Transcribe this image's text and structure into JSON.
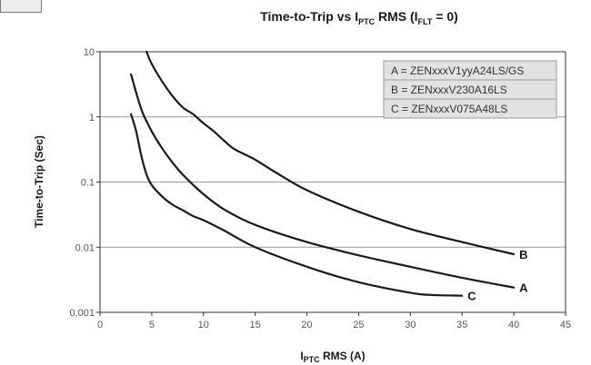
{
  "chart_data": {
    "type": "line",
    "title": "Time-to-Trip vs I_PTC RMS (I_FLT = 0)",
    "title_parts": {
      "lead": "Time-to-Trip vs I",
      "sub1": "PTC",
      "mid": " RMS (I",
      "sub2": "FLT",
      "tail": " = 0)"
    },
    "xlabel": "I_PTC RMS (A)",
    "xlabel_parts": {
      "main": "I",
      "sub": "PTC",
      "rest": " RMS (A)"
    },
    "ylabel": "Time-to-Trip (Sec)",
    "xlim": [
      0,
      45
    ],
    "ylim": [
      0.001,
      10
    ],
    "yscale": "log",
    "grid": "horizontal",
    "legend_position": "top-right",
    "x_ticks": [
      "0",
      "5",
      "10",
      "15",
      "20",
      "25",
      "30",
      "35",
      "40",
      "45"
    ],
    "y_ticks": [
      "0.001",
      "0.01",
      "0.1",
      "1",
      "10"
    ],
    "y_tick_values": [
      0.001,
      0.01,
      0.1,
      1,
      10
    ],
    "legend": [
      "A = ZENxxxV1yyA24LS/GS",
      "B = ZENxxxV230A16LS",
      "C = ZENxxxV075A48LS"
    ],
    "series": [
      {
        "name": "A",
        "x": [
          3,
          4,
          5,
          6,
          7,
          8,
          10,
          12,
          15,
          20,
          25,
          30,
          35,
          40
        ],
        "y": [
          4.5,
          1.3,
          0.6,
          0.33,
          0.2,
          0.13,
          0.065,
          0.038,
          0.022,
          0.012,
          0.0075,
          0.005,
          0.0034,
          0.0024
        ]
      },
      {
        "name": "B",
        "x": [
          4.5,
          5,
          6,
          7,
          8,
          9,
          10,
          11,
          12,
          13,
          15,
          17,
          20,
          25,
          30,
          35,
          40
        ],
        "y": [
          10,
          6.5,
          3.5,
          2.1,
          1.4,
          1.1,
          0.8,
          0.6,
          0.43,
          0.32,
          0.22,
          0.14,
          0.075,
          0.035,
          0.019,
          0.012,
          0.0078
        ]
      },
      {
        "name": "C",
        "x": [
          3,
          3.5,
          4,
          4.5,
          5,
          6,
          7,
          8,
          9,
          10,
          12,
          15,
          20,
          25,
          30,
          32,
          35
        ],
        "y": [
          1.1,
          0.6,
          0.25,
          0.13,
          0.09,
          0.06,
          0.045,
          0.037,
          0.03,
          0.026,
          0.018,
          0.01,
          0.005,
          0.0029,
          0.002,
          0.00185,
          0.0018
        ]
      }
    ]
  }
}
